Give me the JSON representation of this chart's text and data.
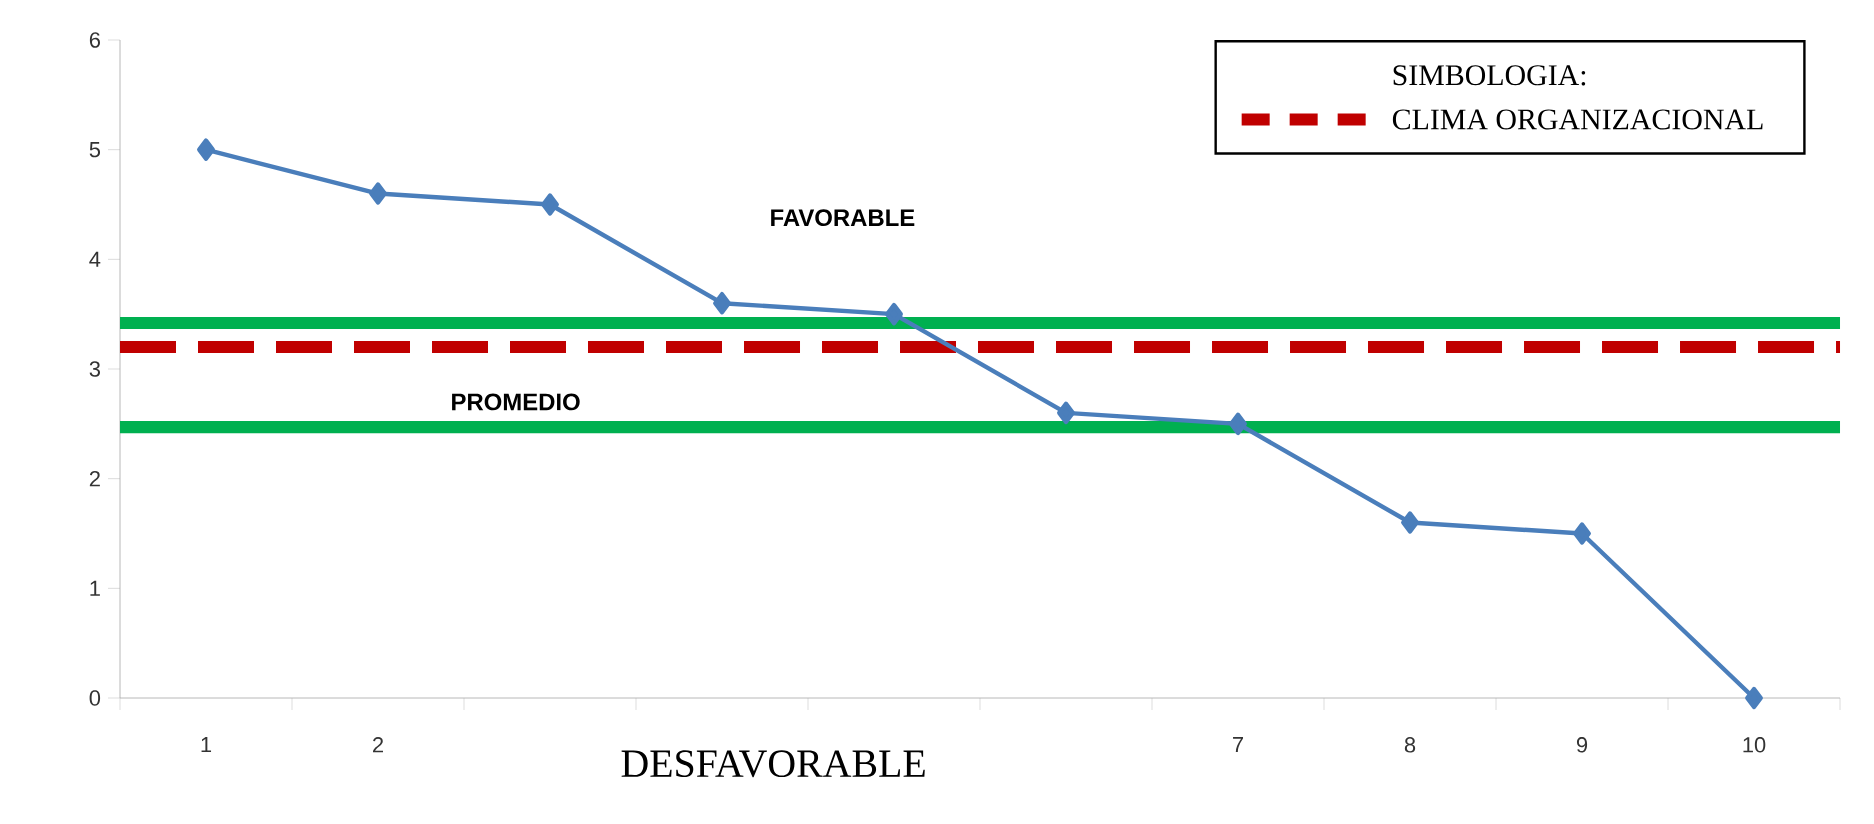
{
  "chart_data": {
    "type": "line",
    "categories": [
      "1",
      "2",
      null,
      null,
      null,
      null,
      "7",
      "8",
      "9",
      "10"
    ],
    "series": [
      {
        "color": "#4a7ebb",
        "values": [
          5,
          4.6,
          4.5,
          3.6,
          3.5,
          2.6,
          2.5,
          1.6,
          1.5,
          0
        ]
      }
    ],
    "marker": "diamond",
    "ylim": [
      0,
      6
    ],
    "yticks": [
      0,
      1,
      2,
      3,
      4,
      5,
      6
    ],
    "grid": false,
    "legend": "top right",
    "legend_title": "SIMBOLOGIA:",
    "ref_lines": [
      {
        "axis": "y",
        "value": 3.42,
        "color": "#00b050"
      },
      {
        "axis": "y",
        "value": 3.2,
        "color": "#c00000",
        "line_style": "dashed",
        "label": "CLIMA ORGANIZACIONAL"
      },
      {
        "axis": "y",
        "value": 2.47,
        "color": "#00b050"
      }
    ],
    "annotations": [
      "FAVORABLE",
      "PROMEDIO",
      "DESFAVORABLE"
    ]
  }
}
